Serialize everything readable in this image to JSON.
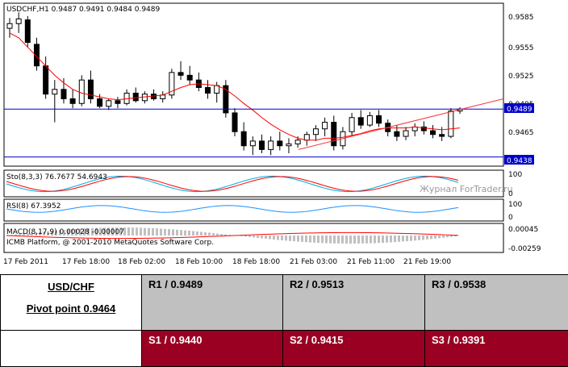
{
  "chart": {
    "header": "USDCHF,H1  0.9487 0.9491 0.9484 0.9489",
    "watermark": "Журнал ForTrader.ru",
    "price_axis_labels": [
      "0.9585",
      "0.9555",
      "0.9525",
      "0.9495",
      "0.9465"
    ],
    "current_price_label": "0.9489",
    "support_line_label": "0.9438",
    "stochastic_label": "Sto(8,3,3) 76.7677 54.6943",
    "stochastic_axis": [
      "100",
      "0"
    ],
    "rsi_label": "RSI(8) 67.3952",
    "rsi_axis": [
      "100",
      "0"
    ],
    "macd_label": "MACD(8,17,9) 0.00028 -0.00007",
    "macd_axis": [
      "0.00045",
      "-0.00259"
    ],
    "copyright": "ICMB Platform, @ 2001-2010 MetaQuotes Software Corp.",
    "time_labels": [
      "17 Feb 2011",
      "17 Feb 18:00",
      "18 Feb 02:00",
      "18 Feb 10:00",
      "18 Feb 18:00",
      "21 Feb 03:00",
      "21 Feb 11:00",
      "21 Feb 19:00"
    ],
    "colors": {
      "bull_candle": "#ffffff",
      "bear_candle": "#000000",
      "moving_average": "#ff0000",
      "horizontal_lines": "#0000cc",
      "stoch_main": "#00aadd",
      "stoch_signal": "#ff0000",
      "rsi_line": "#1e90ff",
      "macd_hist": "#c0c0c0",
      "macd_signal": "#ff0000"
    }
  },
  "chart_data": {
    "type": "candlestick",
    "title": "USDCHF,H1",
    "ohlc_last": {
      "open": 0.9487,
      "high": 0.9491,
      "low": 0.9484,
      "close": 0.9489
    },
    "ylim": [
      0.943,
      0.96
    ],
    "horizontal_lines": [
      0.9489,
      0.9438
    ],
    "candles": [
      [
        0.9575,
        0.9586,
        0.9565,
        0.958
      ],
      [
        0.958,
        0.9592,
        0.957,
        0.9585
      ],
      [
        0.9584,
        0.9588,
        0.9555,
        0.956
      ],
      [
        0.9558,
        0.9565,
        0.953,
        0.9535
      ],
      [
        0.9535,
        0.9545,
        0.95,
        0.9505
      ],
      [
        0.9505,
        0.952,
        0.9475,
        0.951
      ],
      [
        0.951,
        0.9522,
        0.9495,
        0.95
      ],
      [
        0.95,
        0.951,
        0.949,
        0.9495
      ],
      [
        0.9495,
        0.9525,
        0.9492,
        0.952
      ],
      [
        0.952,
        0.953,
        0.9495,
        0.95
      ],
      [
        0.95,
        0.9505,
        0.949,
        0.9492
      ],
      [
        0.9492,
        0.95,
        0.9488,
        0.9498
      ],
      [
        0.9498,
        0.9502,
        0.949,
        0.9495
      ],
      [
        0.9495,
        0.951,
        0.9493,
        0.9506
      ],
      [
        0.9506,
        0.9512,
        0.9496,
        0.9498
      ],
      [
        0.9498,
        0.9508,
        0.9495,
        0.9505
      ],
      [
        0.9505,
        0.951,
        0.9498,
        0.95
      ],
      [
        0.95,
        0.9508,
        0.9496,
        0.9504
      ],
      [
        0.9504,
        0.9532,
        0.95,
        0.9528
      ],
      [
        0.9528,
        0.954,
        0.952,
        0.9525
      ],
      [
        0.9525,
        0.9535,
        0.9515,
        0.952
      ],
      [
        0.952,
        0.9528,
        0.9508,
        0.9512
      ],
      [
        0.9512,
        0.952,
        0.95,
        0.9506
      ],
      [
        0.9506,
        0.9518,
        0.9496,
        0.9514
      ],
      [
        0.9514,
        0.952,
        0.948,
        0.9485
      ],
      [
        0.9485,
        0.949,
        0.946,
        0.9465
      ],
      [
        0.9465,
        0.9475,
        0.9445,
        0.945
      ],
      [
        0.945,
        0.946,
        0.944,
        0.9455
      ],
      [
        0.9455,
        0.9462,
        0.9442,
        0.9446
      ],
      [
        0.9446,
        0.946,
        0.944,
        0.9455
      ],
      [
        0.9455,
        0.9465,
        0.9445,
        0.945
      ],
      [
        0.945,
        0.9458,
        0.9442,
        0.9452
      ],
      [
        0.9452,
        0.946,
        0.9448,
        0.9456
      ],
      [
        0.9456,
        0.9465,
        0.945,
        0.9462
      ],
      [
        0.9462,
        0.9472,
        0.9455,
        0.9468
      ],
      [
        0.9468,
        0.948,
        0.946,
        0.9475
      ],
      [
        0.9475,
        0.9482,
        0.9445,
        0.945
      ],
      [
        0.945,
        0.947,
        0.9446,
        0.9465
      ],
      [
        0.9465,
        0.9485,
        0.946,
        0.948
      ],
      [
        0.948,
        0.9488,
        0.9468,
        0.9472
      ],
      [
        0.9472,
        0.9486,
        0.947,
        0.9482
      ],
      [
        0.9482,
        0.9488,
        0.947,
        0.9474
      ],
      [
        0.9474,
        0.9478,
        0.946,
        0.9465
      ],
      [
        0.9465,
        0.9472,
        0.9455,
        0.946
      ],
      [
        0.946,
        0.947,
        0.9456,
        0.9466
      ],
      [
        0.9466,
        0.9474,
        0.946,
        0.947
      ],
      [
        0.947,
        0.9476,
        0.9462,
        0.9466
      ],
      [
        0.9466,
        0.9472,
        0.9458,
        0.9462
      ],
      [
        0.9462,
        0.947,
        0.9455,
        0.946
      ],
      [
        0.946,
        0.949,
        0.9458,
        0.9487
      ],
      [
        0.9487,
        0.9491,
        0.9484,
        0.9489
      ]
    ],
    "ma_line": [
      0.957,
      0.9565,
      0.9555,
      0.9545,
      0.9535,
      0.9525,
      0.9517,
      0.951,
      0.9506,
      0.9504,
      0.9502,
      0.95,
      0.9499,
      0.95,
      0.9501,
      0.9502,
      0.9503,
      0.9504,
      0.9508,
      0.9512,
      0.9515,
      0.9516,
      0.9515,
      0.9514,
      0.951,
      0.9503,
      0.9495,
      0.9488,
      0.948,
      0.9473,
      0.9467,
      0.9462,
      0.9458,
      0.9456,
      0.9456,
      0.9458,
      0.9458,
      0.9459,
      0.9461,
      0.9463,
      0.9466,
      0.9468,
      0.9469,
      0.9469,
      0.9469,
      0.947,
      0.9469,
      0.9468,
      0.9467,
      0.9468,
      0.9469
    ],
    "trend_line": {
      "start": 0.9446,
      "end": 0.95
    }
  }
}
